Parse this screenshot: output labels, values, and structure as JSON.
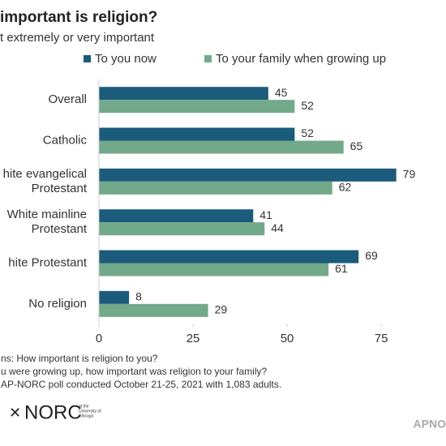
{
  "chart_data": {
    "type": "bar",
    "orientation": "horizontal",
    "title": "important is religion?",
    "subtitle": "t extremely or very important",
    "categories": [
      "Overall",
      "Catholic",
      "hite evangelical\nProtestant",
      "White mainline\nProtestant",
      "hite Protestant",
      "No religion"
    ],
    "series": [
      {
        "name": "To you now",
        "color": "#1b5b7c",
        "values": [
          45,
          52,
          79,
          41,
          69,
          8
        ]
      },
      {
        "name": "To your family when growing up",
        "color": "#72a98a",
        "values": [
          52,
          65,
          62,
          44,
          61,
          29
        ]
      }
    ],
    "xlim": [
      0,
      92
    ],
    "xticks": [
      0,
      25,
      50,
      75
    ],
    "grid": false,
    "notes": [
      "ns: How important is religion to you?",
      "u were growing up, how important was religion to your family?",
      "AP-NORC poll conducted October 21-25, 2021 with 1,083 adults."
    ],
    "logo": "NORC",
    "logo_sub": [
      "at the",
      "University of",
      "Chicago"
    ],
    "corner_text": "APNO"
  }
}
